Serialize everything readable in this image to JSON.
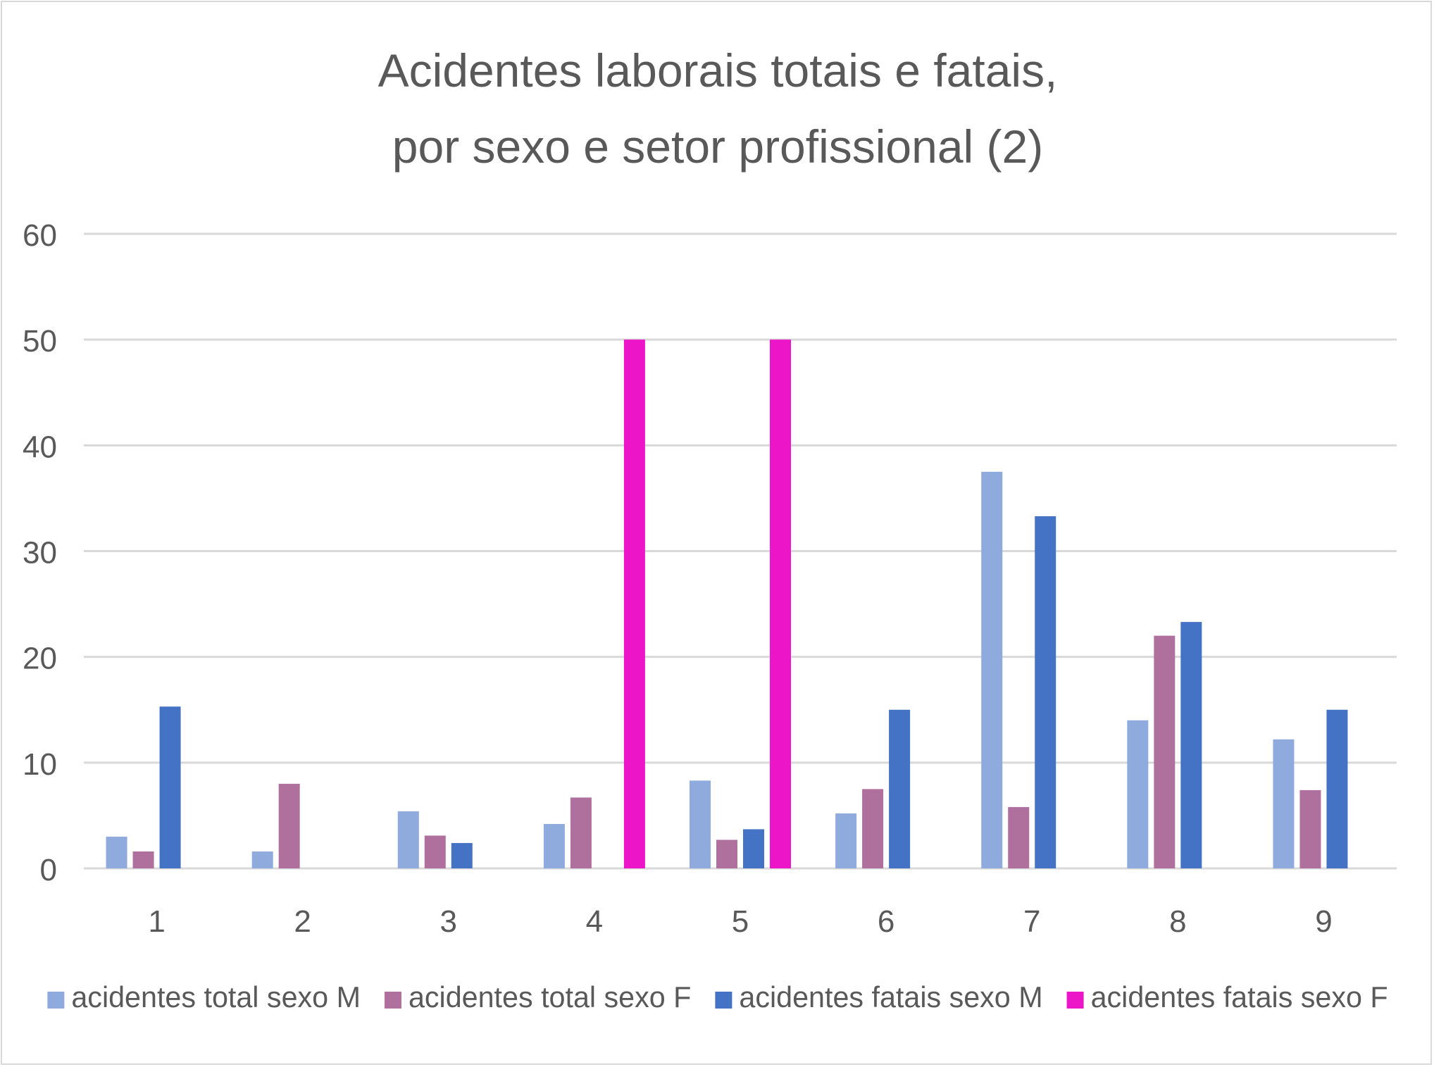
{
  "chart_data": {
    "type": "bar",
    "title": [
      "Acidentes laborais totais e fatais,",
      "por sexo e setor profissional (2)"
    ],
    "xlabel": "",
    "ylabel": "",
    "categories": [
      "1",
      "2",
      "3",
      "4",
      "5",
      "6",
      "7",
      "8",
      "9"
    ],
    "ylim": [
      0,
      60
    ],
    "yticks": [
      0,
      10,
      20,
      30,
      40,
      50,
      60
    ],
    "grid": true,
    "legend_position": "bottom",
    "series": [
      {
        "name": "acidentes total sexo M",
        "color": "#8faadc",
        "values": [
          3.0,
          1.6,
          5.4,
          4.2,
          8.3,
          5.2,
          37.5,
          14.0,
          12.2
        ]
      },
      {
        "name": "acidentes total sexo F",
        "color": "#b0709e",
        "values": [
          1.6,
          8.0,
          3.1,
          6.7,
          2.7,
          7.5,
          5.8,
          22.0,
          7.4
        ]
      },
      {
        "name": "acidentes fatais sexo M",
        "color": "#4472c4",
        "values": [
          15.3,
          0,
          2.4,
          0,
          3.7,
          15.0,
          33.3,
          23.3,
          15.0
        ]
      },
      {
        "name": "acidentes fatais sexo F",
        "color": "#ec15c8",
        "values": [
          0,
          0,
          0,
          50.0,
          50.0,
          0,
          0,
          0,
          0
        ]
      }
    ]
  }
}
